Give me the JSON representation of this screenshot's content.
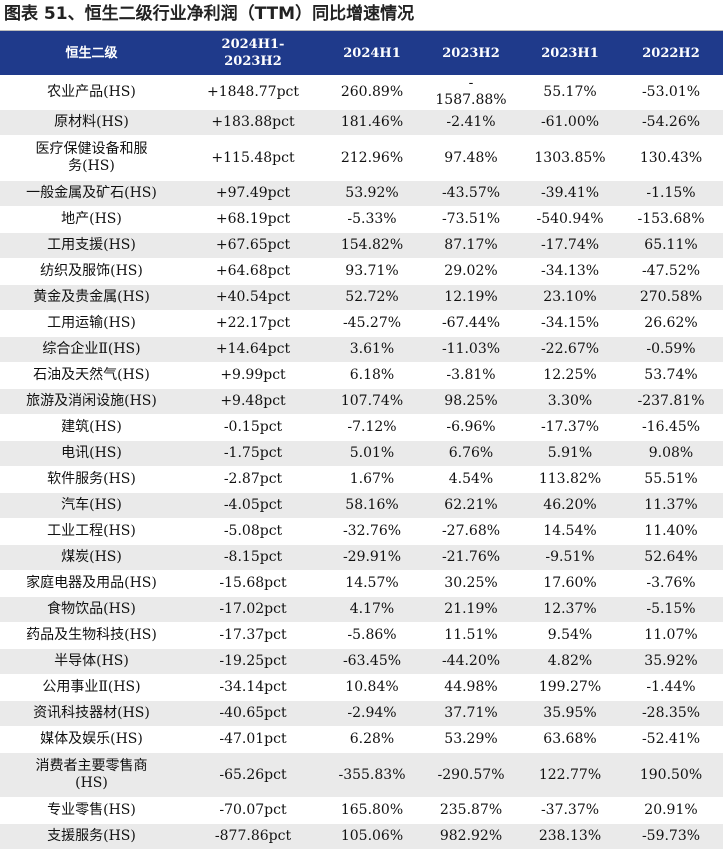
{
  "title": "图表 51、恒生二级行业净利润（TTM）同比增速情况",
  "header": [
    "恒生二级",
    "2024H1-\n2023H2",
    "2024H1",
    "2023H2",
    "2023H1",
    "2022H2"
  ],
  "rows": [
    [
      "农业产品(HS)",
      "+1848.77pct",
      "260.89%",
      "-\n1587.88%",
      "55.17%",
      "-53.01%"
    ],
    [
      "原材料(HS)",
      "+183.88pct",
      "181.46%",
      "-2.41%",
      "-61.00%",
      "-54.26%"
    ],
    [
      "医疗保健设备和服\n务(HS)",
      "+115.48pct",
      "212.96%",
      "97.48%",
      "1303.85%",
      "130.43%"
    ],
    [
      "一般金属及矿石(HS)",
      "+97.49pct",
      "53.92%",
      "-43.57%",
      "-39.41%",
      "-1.15%"
    ],
    [
      "地产(HS)",
      "+68.19pct",
      "-5.33%",
      "-73.51%",
      "-540.94%",
      "-153.68%"
    ],
    [
      "工用支援(HS)",
      "+67.65pct",
      "154.82%",
      "87.17%",
      "-17.74%",
      "65.11%"
    ],
    [
      "纺织及服饰(HS)",
      "+64.68pct",
      "93.71%",
      "29.02%",
      "-34.13%",
      "-47.52%"
    ],
    [
      "黄金及贵金属(HS)",
      "+40.54pct",
      "52.72%",
      "12.19%",
      "23.10%",
      "270.58%"
    ],
    [
      "工用运输(HS)",
      "+22.17pct",
      "-45.27%",
      "-67.44%",
      "-34.15%",
      "26.62%"
    ],
    [
      "综合企业Ⅱ(HS)",
      "+14.64pct",
      "3.61%",
      "-11.03%",
      "-22.67%",
      "-0.59%"
    ],
    [
      "石油及天然气(HS)",
      "+9.99pct",
      "6.18%",
      "-3.81%",
      "12.25%",
      "53.74%"
    ],
    [
      "旅游及消闲设施(HS)",
      "+9.48pct",
      "107.74%",
      "98.25%",
      "3.30%",
      "-237.81%"
    ],
    [
      "建筑(HS)",
      "-0.15pct",
      "-7.12%",
      "-6.96%",
      "-17.37%",
      "-16.45%"
    ],
    [
      "电讯(HS)",
      "-1.75pct",
      "5.01%",
      "6.76%",
      "5.91%",
      "9.08%"
    ],
    [
      "软件服务(HS)",
      "-2.87pct",
      "1.67%",
      "4.54%",
      "113.82%",
      "55.51%"
    ],
    [
      "汽车(HS)",
      "-4.05pct",
      "58.16%",
      "62.21%",
      "46.20%",
      "11.37%"
    ],
    [
      "工业工程(HS)",
      "-5.08pct",
      "-32.76%",
      "-27.68%",
      "14.54%",
      "11.40%"
    ],
    [
      "煤炭(HS)",
      "-8.15pct",
      "-29.91%",
      "-21.76%",
      "-9.51%",
      "52.64%"
    ],
    [
      "家庭电器及用品(HS)",
      "-15.68pct",
      "14.57%",
      "30.25%",
      "17.60%",
      "-3.76%"
    ],
    [
      "食物饮品(HS)",
      "-17.02pct",
      "4.17%",
      "21.19%",
      "12.37%",
      "-5.15%"
    ],
    [
      "药品及生物科技(HS)",
      "-17.37pct",
      "-5.86%",
      "11.51%",
      "9.54%",
      "11.07%"
    ],
    [
      "半导体(HS)",
      "-19.25pct",
      "-63.45%",
      "-44.20%",
      "4.82%",
      "35.92%"
    ],
    [
      "公用事业Ⅱ(HS)",
      "-34.14pct",
      "10.84%",
      "44.98%",
      "199.27%",
      "-1.44%"
    ],
    [
      "资讯科技器材(HS)",
      "-40.65pct",
      "-2.94%",
      "37.71%",
      "35.95%",
      "-28.35%"
    ],
    [
      "媒体及娱乐(HS)",
      "-47.01pct",
      "6.28%",
      "53.29%",
      "63.68%",
      "-52.41%"
    ],
    [
      "消费者主要零售商\n(HS)",
      "-65.26pct",
      "-355.83%",
      "-290.57%",
      "122.77%",
      "190.50%"
    ],
    [
      "专业零售(HS)",
      "-70.07pct",
      "165.80%",
      "235.87%",
      "-37.37%",
      "20.91%"
    ],
    [
      "支援服务(HS)",
      "-877.86pct",
      "105.06%",
      "982.92%",
      "238.13%",
      "-59.73%"
    ]
  ]
}
